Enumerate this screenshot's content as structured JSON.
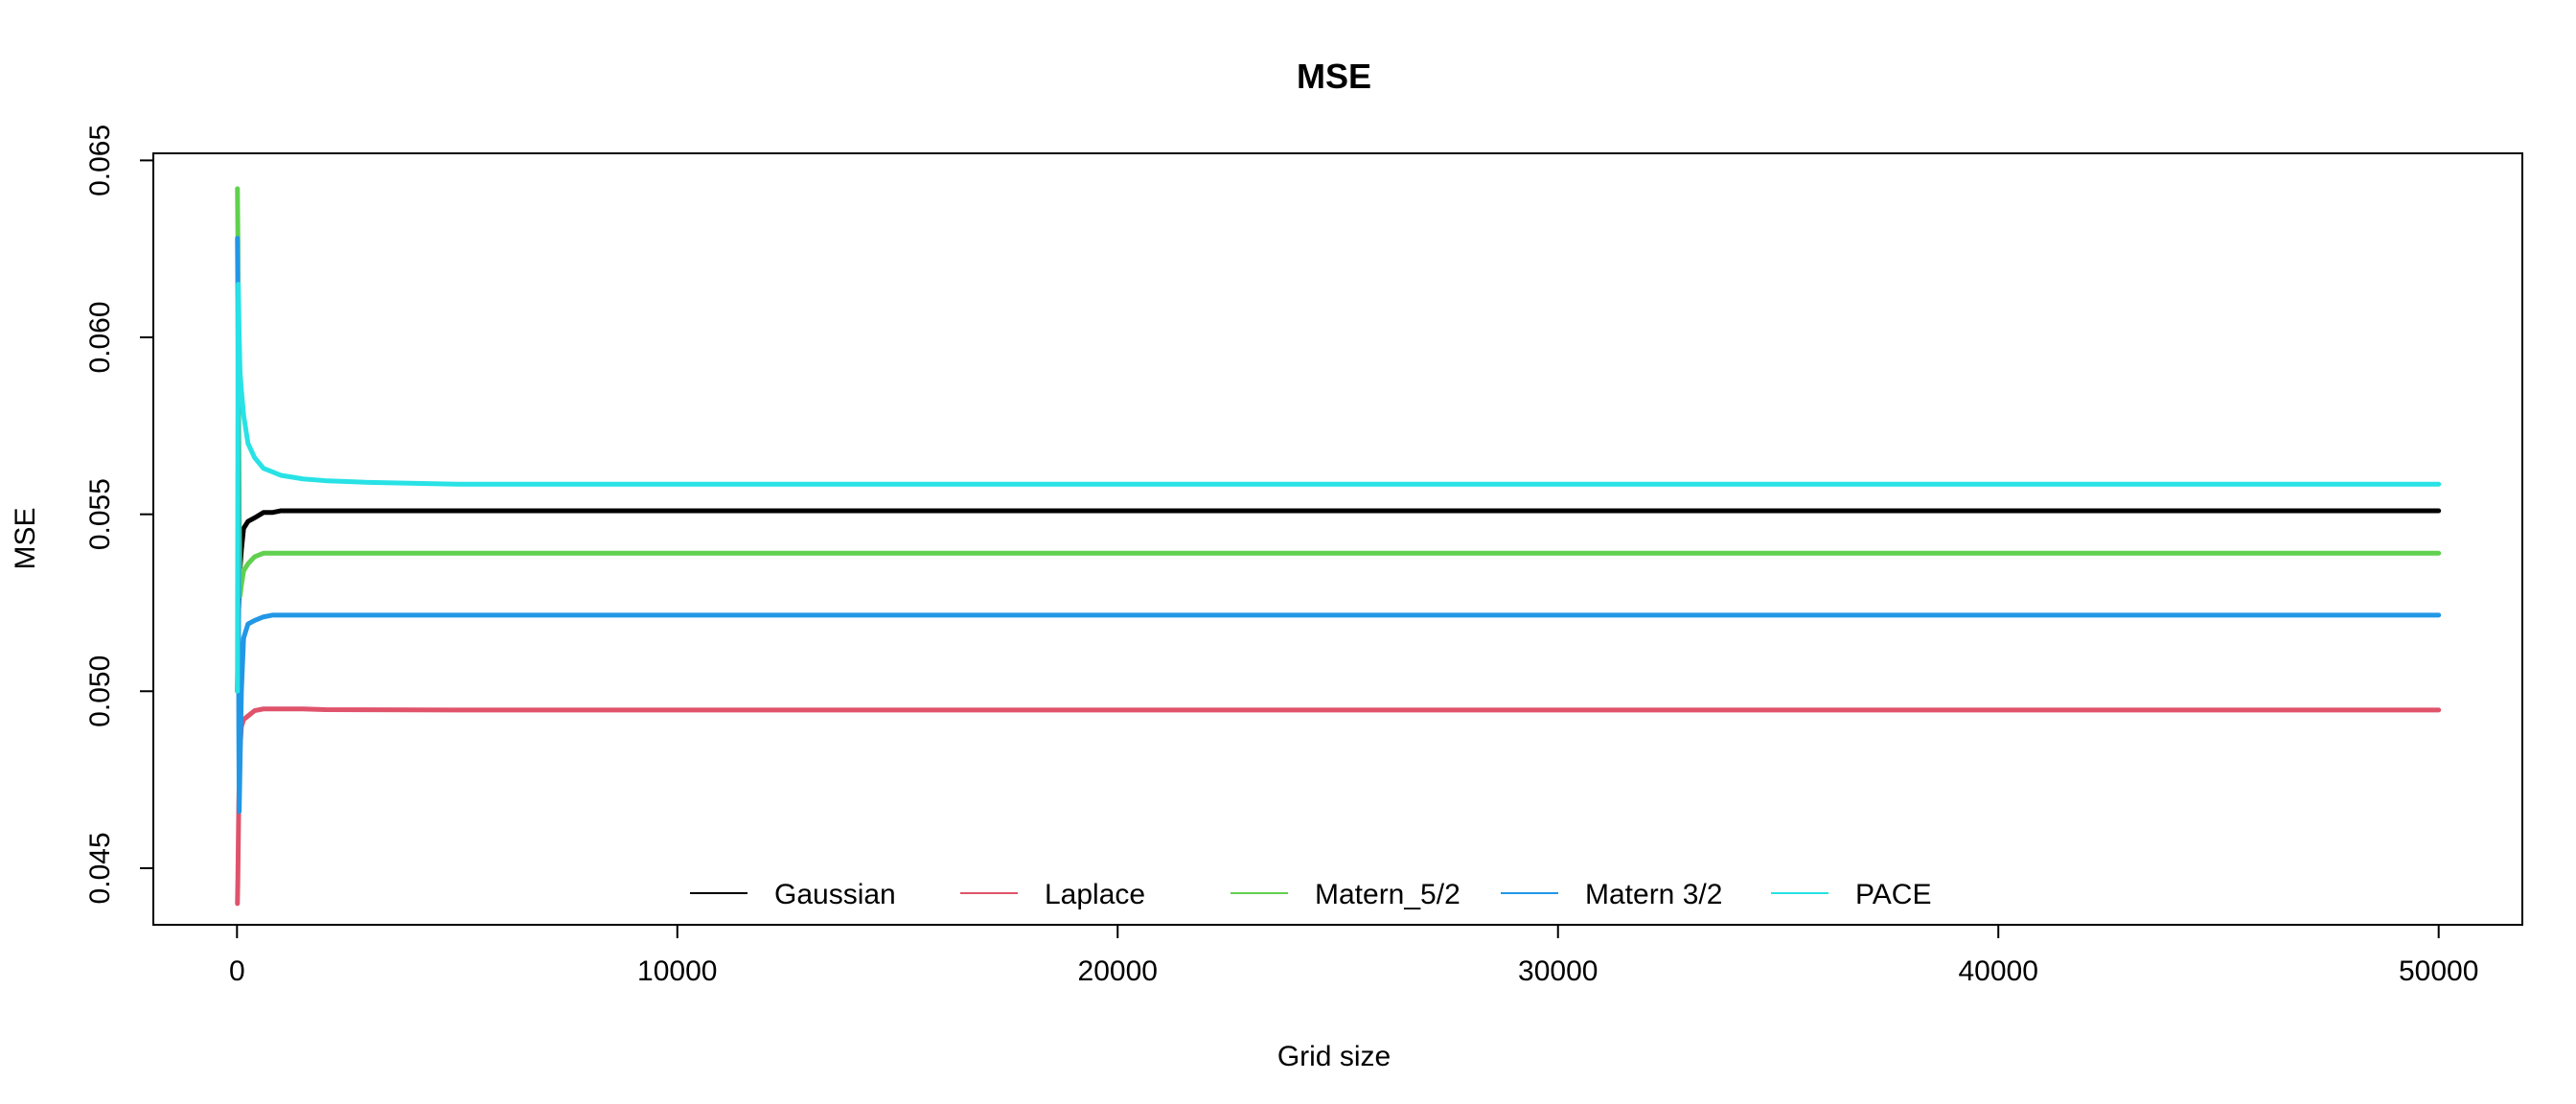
{
  "chart_data": {
    "type": "line",
    "title": "MSE",
    "xlabel": "Grid size",
    "ylabel": "MSE",
    "xlim": [
      -1900,
      51900
    ],
    "ylim": [
      0.0434,
      0.0652
    ],
    "x_ticks": [
      0,
      10000,
      20000,
      30000,
      40000,
      50000
    ],
    "x_tick_labels": [
      "0",
      "10000",
      "20000",
      "30000",
      "40000",
      "50000"
    ],
    "y_ticks": [
      0.045,
      0.05,
      0.055,
      0.06,
      0.065
    ],
    "y_tick_labels": [
      "0.045",
      "0.050",
      "0.055",
      "0.060",
      "0.065"
    ],
    "grid": false,
    "legend_position": "bottom",
    "series": [
      {
        "name": "Gaussian",
        "color": "#000000",
        "x": [
          10,
          30,
          60,
          100,
          150,
          250,
          400,
          600,
          800,
          1000,
          1500,
          2000,
          5000,
          10000,
          20000,
          30000,
          40000,
          50000
        ],
        "y": [
          0.05,
          0.052,
          0.0533,
          0.054,
          0.0546,
          0.0548,
          0.0549,
          0.05505,
          0.05505,
          0.0551,
          0.0551,
          0.0551,
          0.0551,
          0.0551,
          0.0551,
          0.0551,
          0.0551,
          0.0551
        ]
      },
      {
        "name": "Laplace",
        "color": "#DF536B",
        "x": [
          10,
          20,
          40,
          60,
          100,
          150,
          250,
          400,
          600,
          800,
          1000,
          1500,
          2000,
          5000,
          10000,
          20000,
          30000,
          40000,
          50000
        ],
        "y": [
          0.044,
          0.0447,
          0.0468,
          0.0482,
          0.049,
          0.0492,
          0.0493,
          0.04945,
          0.0495,
          0.0495,
          0.0495,
          0.0495,
          0.04948,
          0.04947,
          0.04947,
          0.04947,
          0.04947,
          0.04947,
          0.04947
        ]
      },
      {
        "name": "Matern_5/2",
        "color": "#61D04F",
        "x": [
          10,
          20,
          30,
          50,
          70,
          100,
          150,
          250,
          400,
          600,
          800,
          1000,
          1500,
          2000,
          5000,
          10000,
          20000,
          30000,
          40000,
          50000
        ],
        "y": [
          0.0642,
          0.0629,
          0.06,
          0.0552,
          0.0527,
          0.053,
          0.0534,
          0.0536,
          0.0538,
          0.0539,
          0.0539,
          0.0539,
          0.0539,
          0.0539,
          0.0539,
          0.0539,
          0.0539,
          0.0539,
          0.0539,
          0.0539
        ]
      },
      {
        "name": "Matern 3/2",
        "color": "#2297E6",
        "x": [
          10,
          20,
          30,
          40,
          50,
          70,
          100,
          150,
          250,
          400,
          600,
          800,
          1000,
          1500,
          2000,
          5000,
          10000,
          20000,
          30000,
          40000,
          50000
        ],
        "y": [
          0.0628,
          0.061,
          0.056,
          0.049,
          0.0466,
          0.048,
          0.05,
          0.0515,
          0.0519,
          0.052,
          0.0521,
          0.05215,
          0.05215,
          0.05215,
          0.05215,
          0.05215,
          0.05215,
          0.05215,
          0.05215,
          0.05215,
          0.05215
        ]
      },
      {
        "name": "PACE",
        "color": "#28E2E5",
        "x": [
          10,
          20,
          30,
          50,
          70,
          100,
          150,
          250,
          400,
          600,
          800,
          1000,
          1500,
          2000,
          3000,
          5000,
          10000,
          20000,
          30000,
          40000,
          50000
        ],
        "y": [
          0.05,
          0.0575,
          0.0615,
          0.06,
          0.059,
          0.0585,
          0.0578,
          0.057,
          0.0566,
          0.0563,
          0.0562,
          0.0561,
          0.056,
          0.05595,
          0.0559,
          0.05585,
          0.05585,
          0.05585,
          0.05585,
          0.05585,
          0.05585
        ]
      }
    ]
  }
}
